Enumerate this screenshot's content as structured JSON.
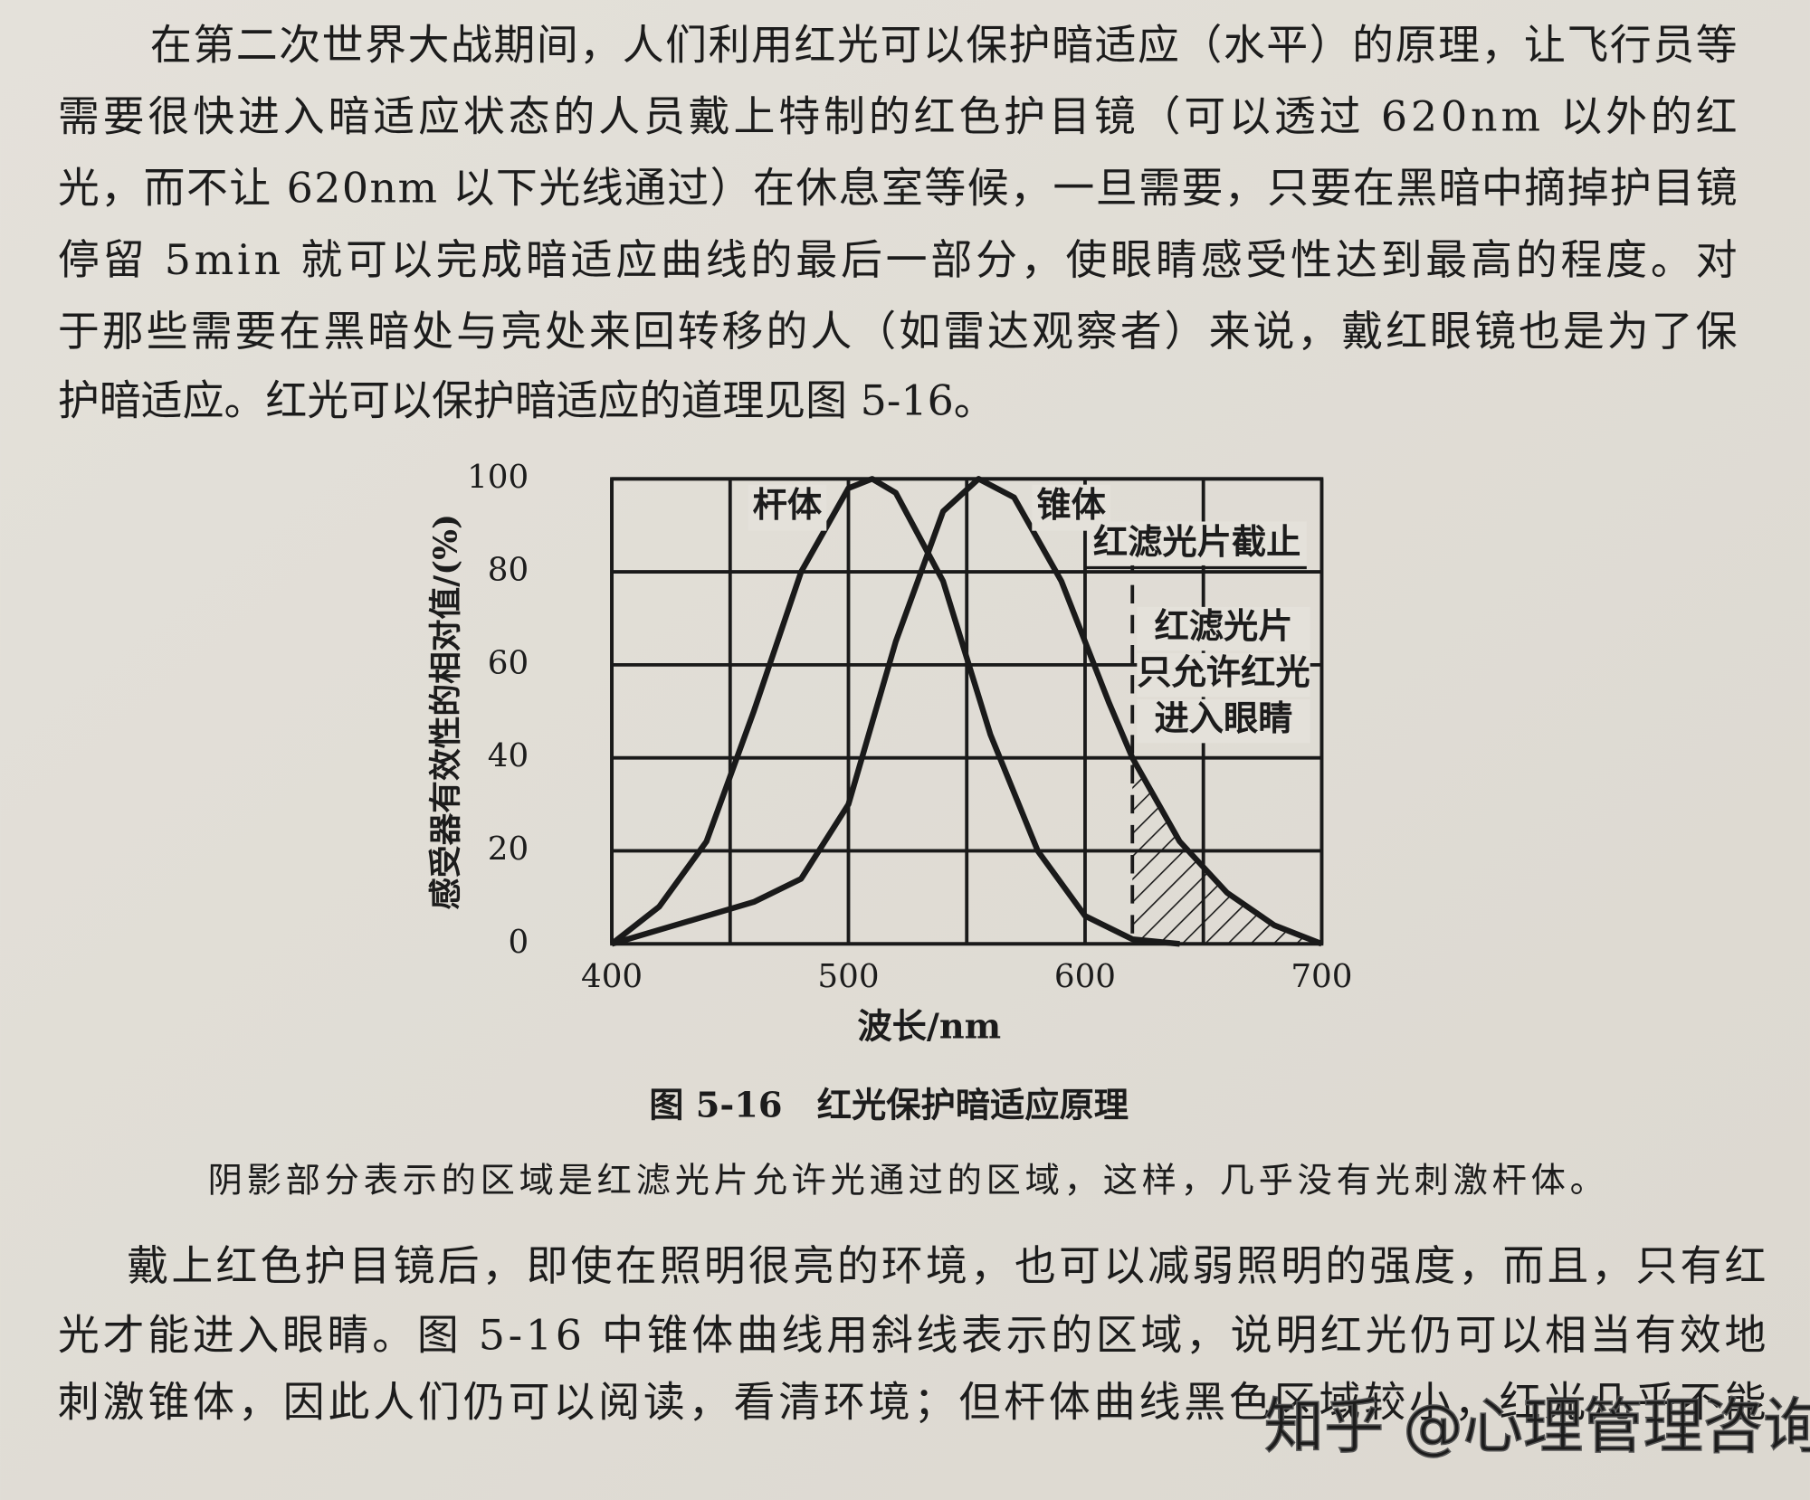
{
  "paragraph_1": [
    "在第二次世界大战期间，人们利用红光可以保护暗适应（水平）的原理，让飞行员等",
    "需要很快进入暗适应状态的人员戴上特制的红色护目镜（可以透过 620nm 以外的红",
    "光，而不让 620nm 以下光线通过）在休息室等候，一旦需要，只要在黑暗中摘掉护目镜",
    "停留 5min 就可以完成暗适应曲线的最后一部分，使眼睛感受性达到最高的程度。对",
    "于那些需要在黑暗处与亮处来回转移的人（如雷达观察者）来说，戴红眼镜也是为了保",
    "护暗适应。红光可以保护暗适应的道理见图 5-16。"
  ],
  "chart_data": {
    "type": "line",
    "x_label": "波长/nm",
    "y_label": "感受器有效性的相对值/(%)",
    "xlim": [
      400,
      700
    ],
    "xticks": [
      400,
      500,
      600,
      700
    ],
    "x_minor_ticks": [
      450,
      550,
      650
    ],
    "ylim": [
      0,
      100
    ],
    "yticks": [
      0,
      20,
      40,
      60,
      80,
      100
    ],
    "grid": true,
    "color": "#1a1a1a",
    "series": [
      {
        "name": "杆体",
        "x": [
          400,
          420,
          440,
          460,
          480,
          500,
          510,
          520,
          540,
          560,
          580,
          600,
          620,
          640
        ],
        "values": [
          0,
          8,
          22,
          50,
          80,
          98,
          100,
          97,
          78,
          45,
          20,
          6,
          1,
          0
        ]
      },
      {
        "name": "锥体",
        "x": [
          400,
          420,
          440,
          460,
          480,
          500,
          520,
          540,
          555,
          570,
          590,
          610,
          620,
          640,
          660,
          680,
          700
        ],
        "values": [
          0,
          3,
          6,
          9,
          14,
          30,
          65,
          93,
          100,
          96,
          78,
          52,
          40,
          22,
          11,
          4,
          0
        ]
      }
    ],
    "cutoff": 620,
    "cutoff_label": "红滤光片截止",
    "pass_label": [
      "红滤光片",
      "只允许红光",
      "进入眼睛"
    ]
  },
  "caption": "图 5-16　红光保护暗适应原理",
  "caption_note": "阴影部分表示的区域是红滤光片允许光通过的区域，这样，几乎没有光刺激杆体。",
  "paragraph_2": [
    "戴上红色护目镜后，即使在照明很亮的环境，也可以减弱照明的强度，而且，只有红",
    "光才能进入眼睛。图 5-16 中锥体曲线用斜线表示的区域，说明红光仍可以相当有效地",
    "刺激锥体，因此人们仍可以阅读，看清环境；但杆体曲线黑色区域较小，红光几乎不能"
  ],
  "watermark": "知乎 @心理管理咨询"
}
